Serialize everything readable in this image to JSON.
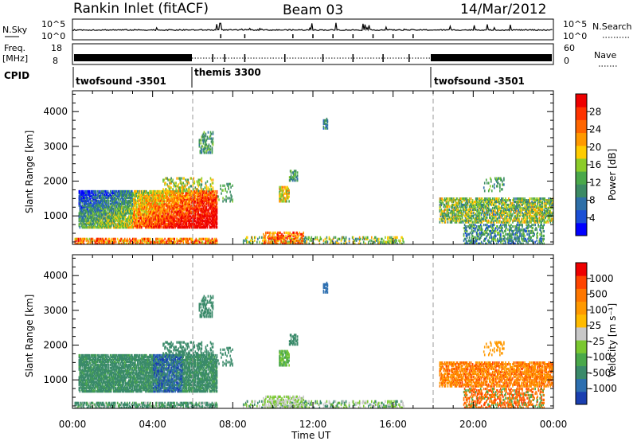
{
  "header": {
    "station": "Rankin Inlet (fitACF)",
    "beam": "Beam 03",
    "date": "14/Mar/2012"
  },
  "strip": {
    "nsky_label": "N.Sky",
    "nsearch_label": "N.Search",
    "nsky_ticks": [
      "10^5",
      "10^0"
    ],
    "nsearch_ticks": [
      "10^5",
      "10^0"
    ],
    "freq_label": "Freq.",
    "freq_unit": "[MHz]",
    "freq_ticks": [
      "18",
      "8"
    ],
    "nave_label": "Nave",
    "nave_ticks": [
      "60",
      "0"
    ],
    "cpid_label": "CPID",
    "cpid_segments": [
      {
        "label": "twofsound -3501",
        "start_hour": 0,
        "end_hour": 6
      },
      {
        "label": "themis 3300",
        "start_hour": 6,
        "end_hour": 18
      },
      {
        "label": "twofsound -3501",
        "start_hour": 18,
        "end_hour": 24
      }
    ]
  },
  "chart_data": [
    {
      "type": "heatmap",
      "panel": "power",
      "xlabel": "Time UT",
      "ylabel": "Slant Range [km]",
      "x_ticks": [
        "00:00",
        "04:00",
        "08:00",
        "12:00",
        "16:00",
        "20:00",
        "00:00"
      ],
      "x_range_hours": [
        0,
        24
      ],
      "y_ticks": [
        1000,
        2000,
        3000,
        4000
      ],
      "ylim": [
        180,
        4600
      ],
      "colorbar_label": "Power [dB]",
      "colorbar_ticks": [
        "4",
        "8",
        "12",
        "16",
        "20",
        "24",
        "28"
      ],
      "colorbar_colors": [
        "#0000ff",
        "#1a4fd6",
        "#2e6fa8",
        "#3c8a64",
        "#4aa84a",
        "#8ccc2a",
        "#ffcc00",
        "#ff9900",
        "#ff6600",
        "#ff3300",
        "#ee0000"
      ],
      "grid": false
    },
    {
      "type": "heatmap",
      "panel": "velocity",
      "xlabel": "Time UT",
      "ylabel": "Slant Range [km]",
      "x_ticks": [
        "00:00",
        "04:00",
        "08:00",
        "12:00",
        "16:00",
        "20:00",
        "00:00"
      ],
      "x_range_hours": [
        0,
        24
      ],
      "y_ticks": [
        1000,
        2000,
        3000,
        4000
      ],
      "ylim": [
        180,
        4600
      ],
      "colorbar_label": "Velocity [m s⁻¹]",
      "colorbar_ticks": [
        "1000",
        "500",
        "100",
        "25",
        "-25",
        "-100",
        "-500",
        "-1000"
      ],
      "colorbar_colors": [
        "#1a3fb0",
        "#2d6fb0",
        "#3a8a6a",
        "#4aa84a",
        "#7ac830",
        "#c8c8c8",
        "#ffbb00",
        "#ff9900",
        "#ff7700",
        "#ff4400",
        "#ee0000"
      ],
      "grid": false
    }
  ],
  "reference_hours": [
    6,
    18
  ]
}
